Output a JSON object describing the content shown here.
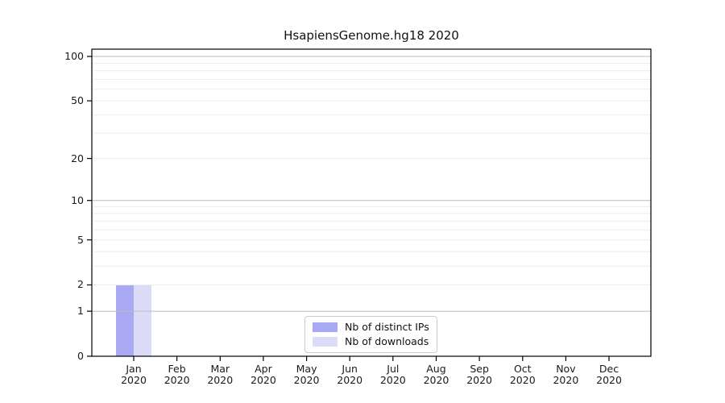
{
  "chart_data": {
    "type": "bar",
    "title": "HsapiensGenome.hg18 2020",
    "x_months": [
      "Jan",
      "Feb",
      "Mar",
      "Apr",
      "May",
      "Jun",
      "Jul",
      "Aug",
      "Sep",
      "Oct",
      "Nov",
      "Dec"
    ],
    "x_year": "2020",
    "series": [
      {
        "name": "Nb of distinct IPs",
        "color": "#a9a9f4",
        "values": [
          2,
          0,
          0,
          0,
          0,
          0,
          0,
          0,
          0,
          0,
          0,
          0
        ]
      },
      {
        "name": "Nb of downloads",
        "color": "#dcdcf9",
        "values": [
          2,
          0,
          0,
          0,
          0,
          0,
          0,
          0,
          0,
          0,
          0,
          0
        ]
      }
    ],
    "yscale": "log1p",
    "ylim": [
      0,
      112
    ],
    "y_ticks": [
      0,
      1,
      2,
      5,
      10,
      20,
      50,
      100
    ],
    "grid": {
      "major_values": [
        1,
        10,
        100
      ],
      "minor_values": [
        2,
        3,
        4,
        5,
        6,
        7,
        8,
        9,
        20,
        30,
        40,
        50,
        60,
        70,
        80,
        90
      ],
      "major_color": "#bbbbbb",
      "minor_color": "#ececec"
    },
    "legend_position": "bottom-center"
  }
}
